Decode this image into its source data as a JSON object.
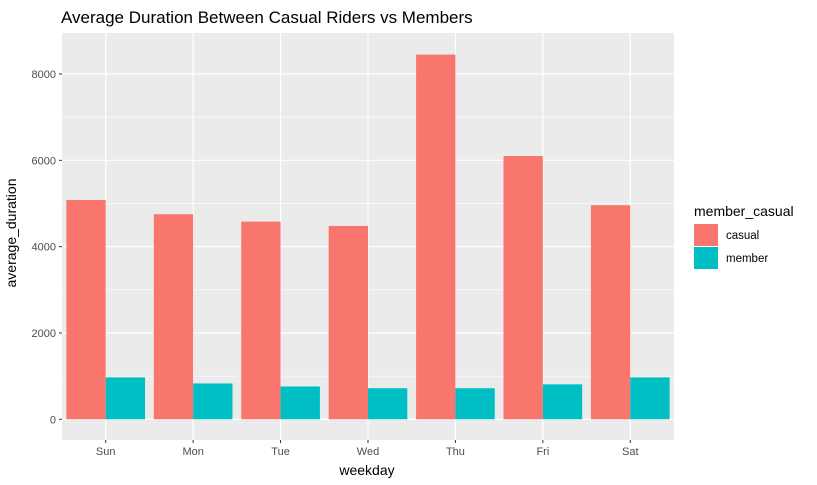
{
  "chart_data": {
    "type": "bar",
    "title": "Average Duration Between Casual Riders vs Members",
    "xlabel": "weekday",
    "ylabel": "average_duration",
    "categories": [
      "Sun",
      "Mon",
      "Tue",
      "Wed",
      "Thu",
      "Fri",
      "Sat"
    ],
    "series": [
      {
        "name": "casual",
        "color": "#F8766D",
        "values": [
          5080,
          4750,
          4580,
          4480,
          8450,
          6100,
          4960
        ]
      },
      {
        "name": "member",
        "color": "#00BFC4",
        "values": [
          970,
          830,
          760,
          720,
          720,
          810,
          970
        ]
      }
    ],
    "ylim": [
      -480,
      8950
    ],
    "yticks": [
      0,
      2000,
      4000,
      6000,
      8000
    ],
    "grid": true,
    "legend": {
      "title": "member_casual",
      "position": "right"
    }
  }
}
